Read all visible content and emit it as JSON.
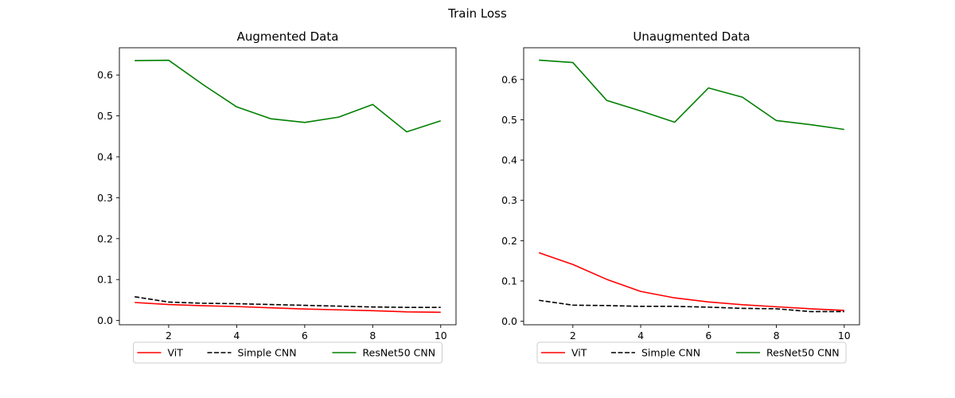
{
  "figure": {
    "suptitle": "Train Loss"
  },
  "chart_data": [
    {
      "type": "line",
      "title": "Augmented Data",
      "xlabel": "",
      "ylabel": "",
      "x": [
        1,
        2,
        3,
        4,
        5,
        6,
        7,
        8,
        9,
        10
      ],
      "xlim": [
        0.55,
        10.45
      ],
      "ylim": [
        -0.0105,
        0.6665
      ],
      "xticks": [
        2,
        4,
        6,
        8,
        10
      ],
      "yticks": [
        0.0,
        0.1,
        0.2,
        0.3,
        0.4,
        0.5,
        0.6
      ],
      "grid": false,
      "legend_placement": "bottom-center",
      "series": [
        {
          "name": "ViT",
          "color": "#ff0000",
          "style": "solid",
          "values": [
            0.044,
            0.039,
            0.036,
            0.034,
            0.031,
            0.028,
            0.026,
            0.024,
            0.021,
            0.02
          ]
        },
        {
          "name": "Simple CNN",
          "color": "#000000",
          "style": "dashed",
          "values": [
            0.058,
            0.045,
            0.042,
            0.041,
            0.039,
            0.037,
            0.035,
            0.033,
            0.032,
            0.032
          ]
        },
        {
          "name": "ResNet50 CNN",
          "color": "#008000",
          "style": "solid",
          "values": [
            0.635,
            0.636,
            0.577,
            0.522,
            0.493,
            0.484,
            0.497,
            0.528,
            0.461,
            0.488
          ]
        }
      ]
    },
    {
      "type": "line",
      "title": "Unaugmented Data",
      "xlabel": "",
      "ylabel": "",
      "x": [
        1,
        2,
        3,
        4,
        5,
        6,
        7,
        8,
        9,
        10
      ],
      "xlim": [
        0.55,
        10.45
      ],
      "ylim": [
        -0.0087,
        0.6787
      ],
      "xticks": [
        2,
        4,
        6,
        8,
        10
      ],
      "yticks": [
        0.0,
        0.1,
        0.2,
        0.3,
        0.4,
        0.5,
        0.6
      ],
      "grid": false,
      "legend_placement": "bottom-center",
      "series": [
        {
          "name": "ViT",
          "color": "#ff0000",
          "style": "solid",
          "values": [
            0.17,
            0.141,
            0.104,
            0.074,
            0.058,
            0.048,
            0.041,
            0.036,
            0.031,
            0.027
          ]
        },
        {
          "name": "Simple CNN",
          "color": "#000000",
          "style": "dashed",
          "values": [
            0.052,
            0.04,
            0.039,
            0.037,
            0.037,
            0.035,
            0.032,
            0.031,
            0.024,
            0.024
          ]
        },
        {
          "name": "ResNet50 CNN",
          "color": "#008000",
          "style": "solid",
          "values": [
            0.648,
            0.642,
            0.548,
            0.522,
            0.494,
            0.579,
            0.556,
            0.498,
            0.488,
            0.476
          ]
        }
      ]
    }
  ]
}
